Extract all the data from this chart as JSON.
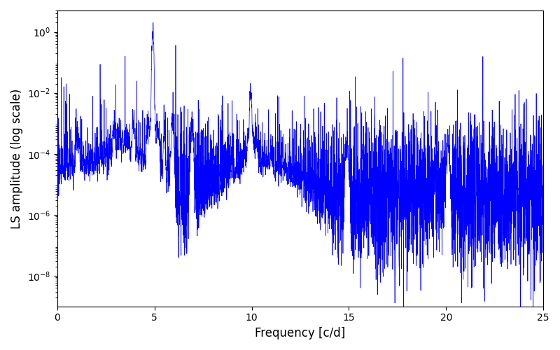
{
  "xlabel": "Frequency [c/d]",
  "ylabel": "LS amplitude (log scale)",
  "xlim": [
    0,
    25
  ],
  "line_color": "#0000ff",
  "line_width": 0.5,
  "background_color": "#ffffff",
  "figsize": [
    8.0,
    5.0
  ],
  "dpi": 100,
  "main_peak_freq": 4.92,
  "main_peak_amp": 1.0,
  "second_peak_freq": 9.95,
  "second_peak_amp": 0.012,
  "n_points": 5000,
  "freq_max": 25.0,
  "noise_floor_log": -5.3,
  "noise_sigma": 1.2,
  "seed": 17
}
